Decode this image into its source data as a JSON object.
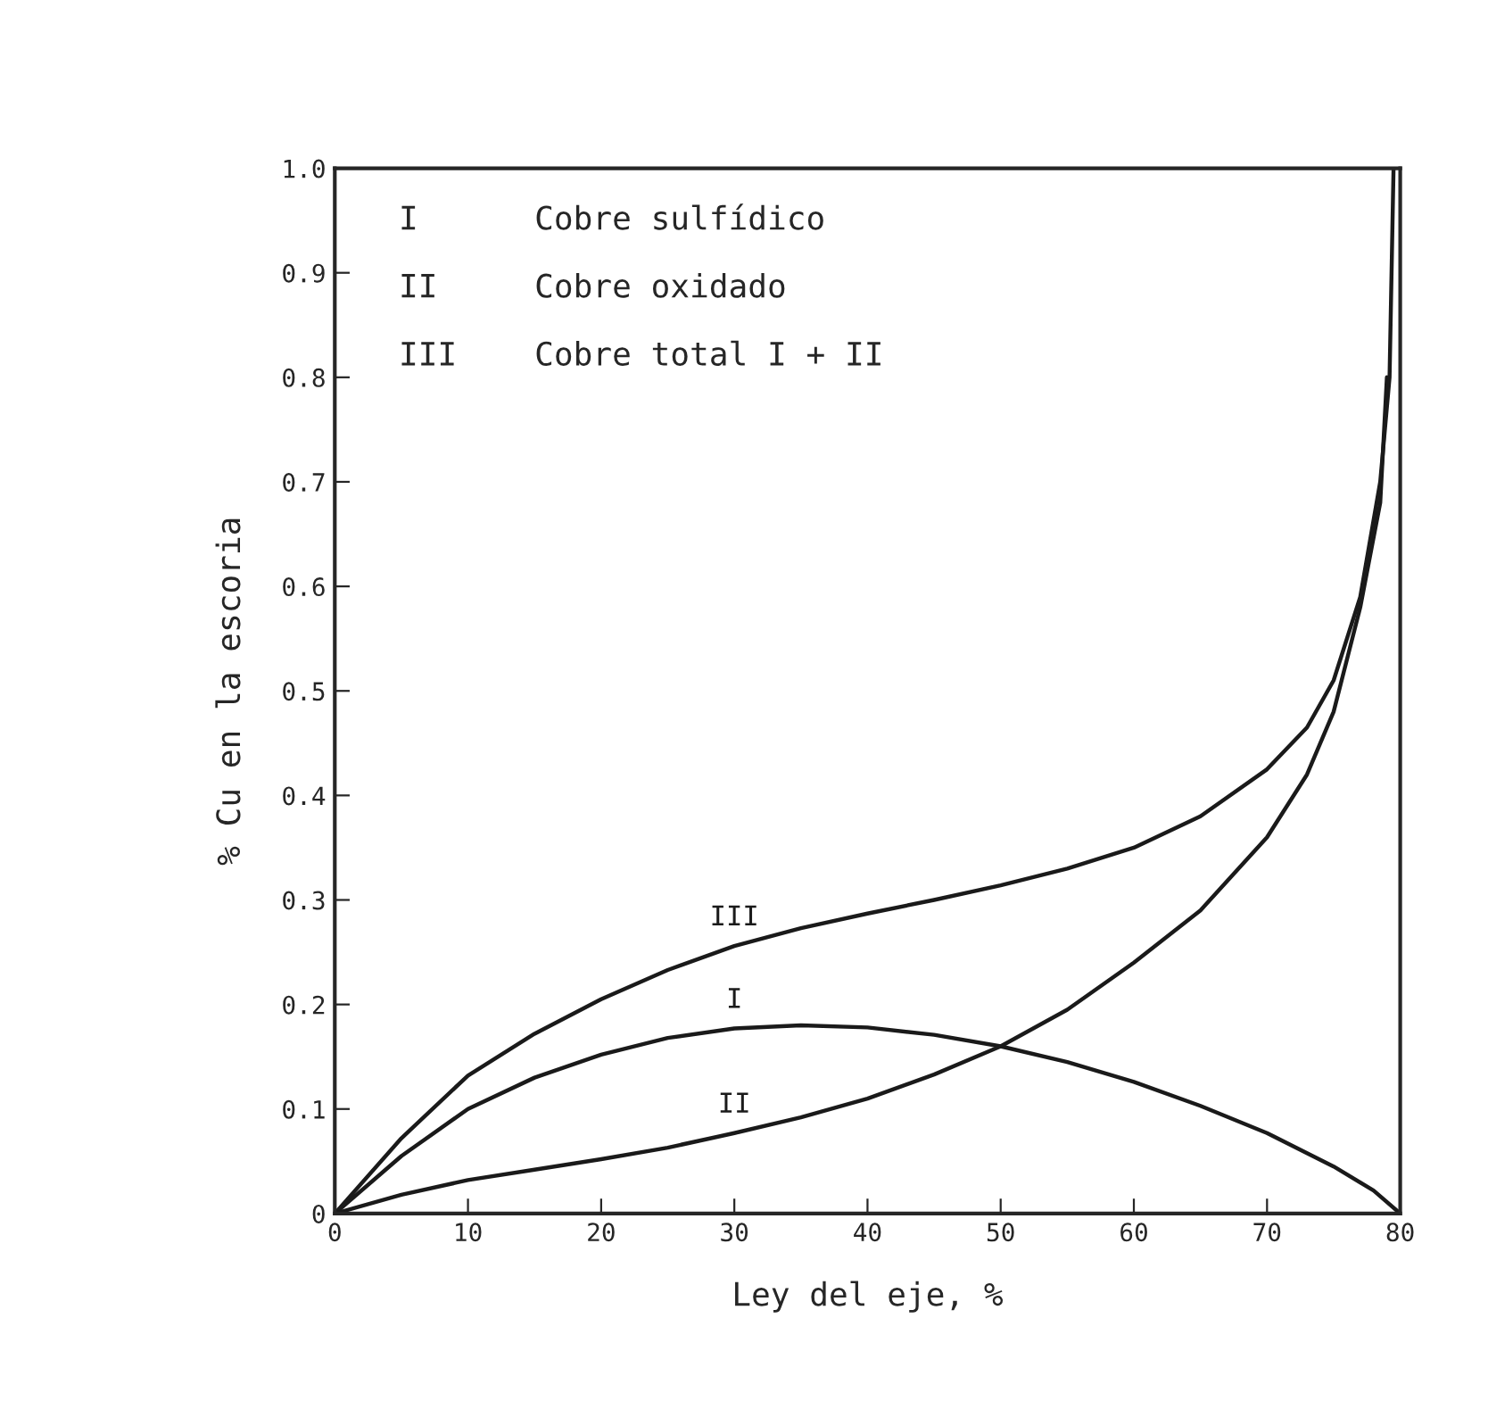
{
  "chart_data": {
    "type": "line",
    "xlabel": "Ley del eje, %",
    "ylabel": "% Cu en la escoria",
    "xlim": [
      0,
      80
    ],
    "ylim": [
      0,
      1.0
    ],
    "xticks": [
      0,
      10,
      20,
      30,
      40,
      50,
      60,
      70,
      80
    ],
    "yticks": [
      0,
      0.1,
      0.2,
      0.3,
      0.4,
      0.5,
      0.6,
      0.7,
      0.8,
      0.9,
      {
        "value": 1,
        "label": "1.0"
      }
    ],
    "grid": false,
    "marker": "none",
    "line_style": "solid",
    "series": [
      {
        "name": "I",
        "color": "#1a1a1a",
        "x": [
          0,
          5,
          10,
          15,
          20,
          25,
          30,
          35,
          40,
          45,
          50,
          55,
          60,
          65,
          70,
          75,
          78,
          80
        ],
        "values": [
          0,
          0.055,
          0.1,
          0.13,
          0.152,
          0.168,
          0.177,
          0.18,
          0.178,
          0.171,
          0.16,
          0.145,
          0.126,
          0.103,
          0.077,
          0.045,
          0.022,
          0
        ]
      },
      {
        "name": "II",
        "color": "#1a1a1a",
        "x": [
          0,
          5,
          10,
          15,
          20,
          25,
          30,
          35,
          40,
          45,
          50,
          55,
          60,
          65,
          70,
          73,
          75,
          77,
          78.5,
          79
        ],
        "values": [
          0,
          0.018,
          0.032,
          0.042,
          0.052,
          0.063,
          0.077,
          0.092,
          0.11,
          0.133,
          0.16,
          0.195,
          0.24,
          0.29,
          0.36,
          0.42,
          0.48,
          0.58,
          0.68,
          0.8
        ]
      },
      {
        "name": "III",
        "color": "#1a1a1a",
        "x": [
          0,
          5,
          10,
          15,
          20,
          25,
          30,
          35,
          40,
          45,
          50,
          55,
          60,
          65,
          70,
          73,
          75,
          77,
          78.5,
          79.2,
          79.5
        ],
        "values": [
          0,
          0.072,
          0.132,
          0.172,
          0.205,
          0.233,
          0.256,
          0.273,
          0.287,
          0.3,
          0.314,
          0.33,
          0.35,
          0.38,
          0.425,
          0.465,
          0.51,
          0.59,
          0.7,
          0.8,
          1.0
        ]
      }
    ],
    "annotations": [
      "I      Cobre sulfídico",
      "II     Cobre oxidado",
      "III    Cobre total I + II"
    ]
  }
}
